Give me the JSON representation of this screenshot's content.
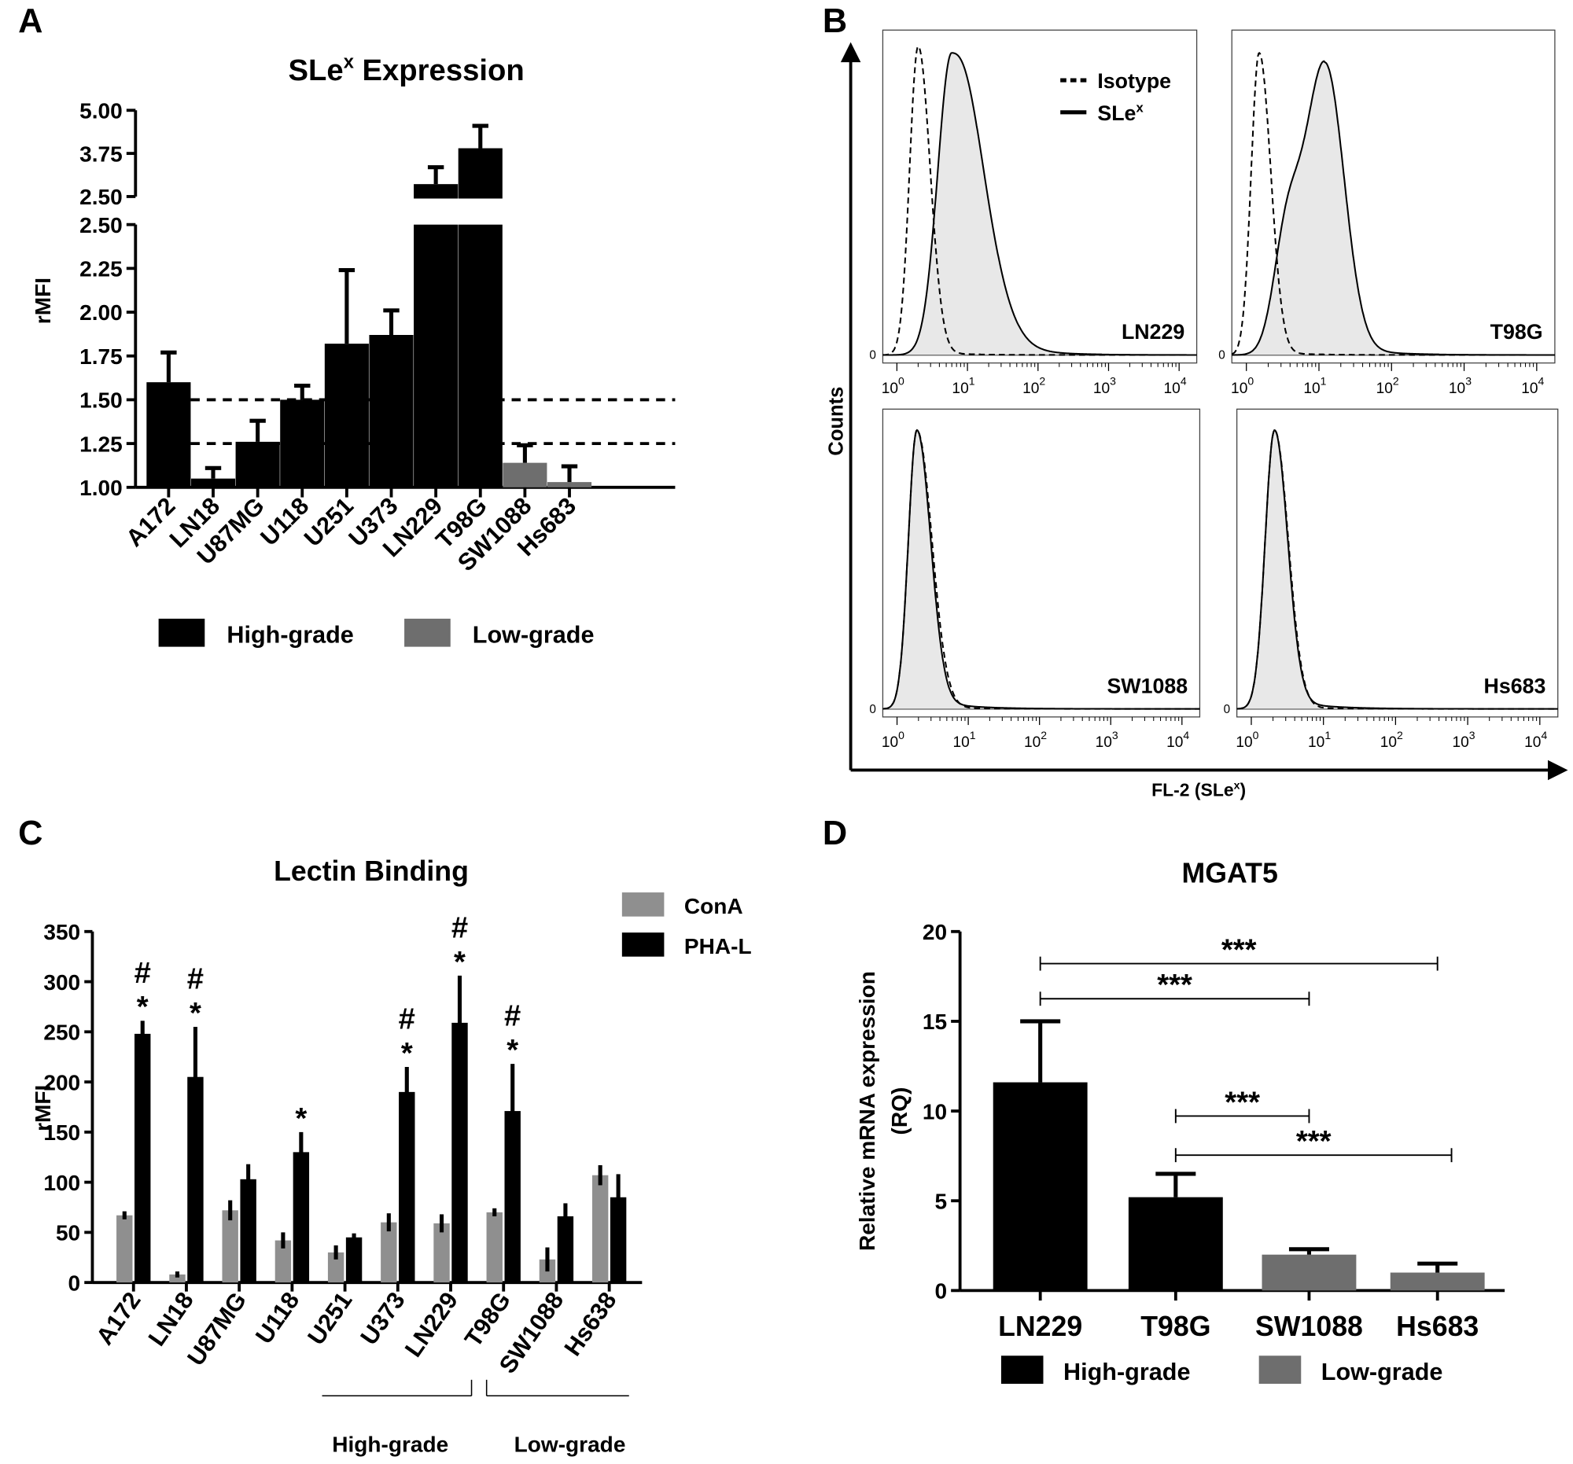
{
  "panel_labels": [
    "A",
    "B",
    "C",
    "D"
  ],
  "chart_data": [
    {
      "panel": "A",
      "type": "bar",
      "title_main": "SLe",
      "title_sup": "x",
      "title_rest": " Expression",
      "ylabel": "rMFI",
      "ylim": [
        1.0,
        5.0
      ],
      "axis_break": {
        "lower": [
          1.0,
          2.5
        ],
        "upper": [
          2.5,
          5.0
        ]
      },
      "yticks_lower": [
        "1.00",
        "1.25",
        "1.50",
        "1.75",
        "2.00",
        "2.25",
        "2.50"
      ],
      "yticks_upper": [
        "2.50",
        "3.75",
        "5.00"
      ],
      "reference_lines": [
        1.25,
        1.5
      ],
      "categories": [
        "A172",
        "LN18",
        "U87MG",
        "U118",
        "U251",
        "U373",
        "LN229",
        "T98G",
        "SW1088",
        "Hs683"
      ],
      "values": [
        1.6,
        1.05,
        1.26,
        1.5,
        1.82,
        1.87,
        2.86,
        3.9,
        1.14,
        1.03
      ],
      "error_upper": [
        1.77,
        1.11,
        1.38,
        1.58,
        2.24,
        2.01,
        3.35,
        4.55,
        1.24,
        1.12
      ],
      "groups": [
        "high",
        "high",
        "high",
        "high",
        "high",
        "high",
        "high",
        "high",
        "low",
        "low"
      ],
      "legend": [
        {
          "label": "High-grade",
          "color": "#000000"
        },
        {
          "label": "Low-grade",
          "color": "#6e6e6e"
        }
      ]
    },
    {
      "panel": "B",
      "type": "line",
      "xlabel_main": "FL-2 (SLe",
      "xlabel_sup": "x",
      "xlabel_rest": ")",
      "ylabel": "Counts",
      "xscale": "log",
      "xticks": [
        "10",
        "10",
        "10",
        "10",
        "10"
      ],
      "xtick_exponents": [
        "0",
        "1",
        "2",
        "3",
        "4"
      ],
      "y_zero_label": "0",
      "legend": [
        {
          "label": "Isotype",
          "style": "dashed"
        },
        {
          "label_main": "SLe",
          "label_sup": "x",
          "style": "solid-filled"
        }
      ],
      "fill_color": "#e8e8e8",
      "histograms": [
        {
          "name": "LN229",
          "isotype_peak": 2,
          "slex_peak": 6
        },
        {
          "name": "T98G",
          "isotype_peak": 1.5,
          "slex_peak": 12
        },
        {
          "name": "SW1088",
          "isotype_peak": 1.9,
          "slex_peak": 1.9
        },
        {
          "name": "Hs683",
          "isotype_peak": 2.1,
          "slex_peak": 2.1
        }
      ]
    },
    {
      "panel": "C",
      "type": "bar",
      "title": "Lectin Binding",
      "ylabel": "rMFI",
      "ylim": [
        0,
        350
      ],
      "yticks": [
        "0",
        "50",
        "100",
        "150",
        "200",
        "250",
        "300",
        "350"
      ],
      "categories": [
        "A172",
        "LN18",
        "U87MG",
        "U118",
        "U251",
        "U373",
        "LN229",
        "T98G",
        "SW1088",
        "Hs638"
      ],
      "series": [
        {
          "name": "ConA",
          "color": "#8f8f8f",
          "values": [
            67,
            8,
            72,
            42,
            30,
            60,
            59,
            70,
            23,
            107
          ],
          "errors": [
            4,
            3,
            10,
            8,
            7,
            9,
            9,
            4,
            12,
            10
          ]
        },
        {
          "name": "PHA-L",
          "color": "#000000",
          "values": [
            248,
            205,
            103,
            130,
            45,
            190,
            259,
            171,
            66,
            85
          ],
          "errors": [
            13,
            50,
            15,
            20,
            4,
            25,
            47,
            47,
            13,
            23
          ]
        }
      ],
      "annotations": [
        "#\n*",
        "#\n*",
        "",
        "*",
        "",
        "#\n*",
        "#\n*",
        "#\n*",
        "",
        ""
      ],
      "annotation_hash": "#",
      "annotation_star": "*",
      "group_labels": [
        "High-grade",
        "Low-grade"
      ]
    },
    {
      "panel": "D",
      "type": "bar",
      "title": "MGAT5",
      "ylabel_line1": "Relative mRNA expression",
      "ylabel_line2": "(RQ)",
      "ylim": [
        0,
        20
      ],
      "yticks": [
        "0",
        "5",
        "10",
        "15",
        "20"
      ],
      "categories": [
        "LN229",
        "T98G",
        "SW1088",
        "Hs683"
      ],
      "values": [
        11.6,
        5.2,
        2.0,
        1.0
      ],
      "error_upper": [
        15.0,
        6.5,
        2.3,
        1.5
      ],
      "colors": [
        "#000000",
        "#000000",
        "#6e6e6e",
        "#6e6e6e"
      ],
      "significance": [
        {
          "from": "LN229",
          "to": "Hs683",
          "label": "***"
        },
        {
          "from": "LN229",
          "to": "SW1088",
          "label": "***"
        },
        {
          "from": "T98G",
          "to": "SW1088",
          "label": "***"
        },
        {
          "from": "T98G",
          "to": "Hs683",
          "label": "***"
        }
      ],
      "legend": [
        {
          "label": "High-grade",
          "color": "#000000"
        },
        {
          "label": "Low-grade",
          "color": "#6e6e6e"
        }
      ]
    }
  ]
}
